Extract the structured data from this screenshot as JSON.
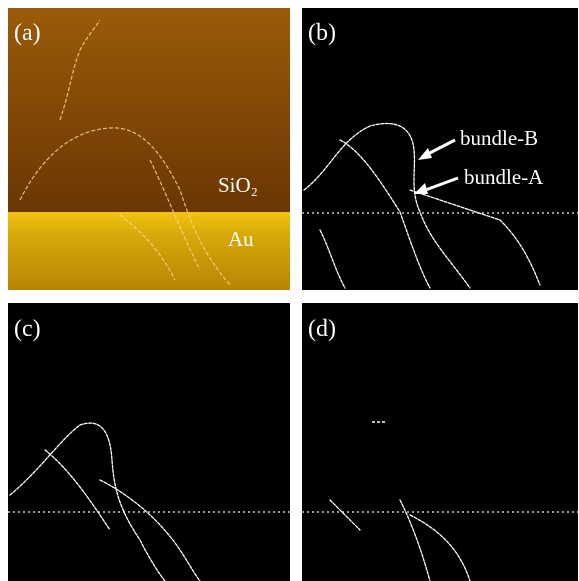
{
  "panels": [
    {
      "label": "(a)",
      "annotations": [
        "SiO₂",
        "Au"
      ]
    },
    {
      "label": "(b)",
      "annotations": [
        "bundle-B",
        "bundle-A"
      ]
    },
    {
      "label": "(c)"
    },
    {
      "label": "(d)"
    }
  ]
}
